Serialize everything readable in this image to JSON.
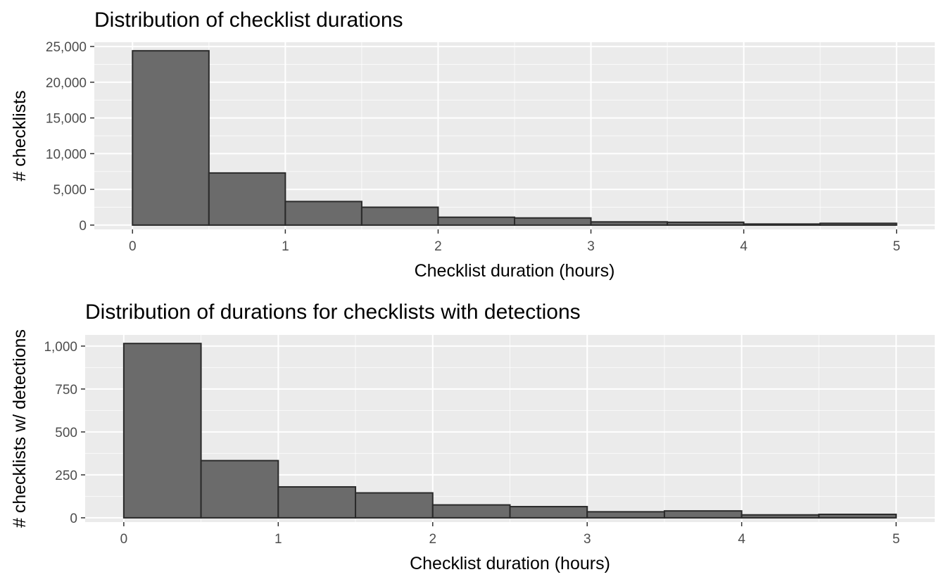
{
  "chart_data": [
    {
      "type": "bar",
      "title": "Distribution of checklist durations",
      "xlabel": "Checklist duration (hours)",
      "ylabel": "# checklists",
      "bin_width": 0.5,
      "bins_start": [
        0,
        0.5,
        1,
        1.5,
        2,
        2.5,
        3,
        3.5,
        4,
        4.5
      ],
      "values": [
        24400,
        7300,
        3300,
        2500,
        1100,
        1000,
        450,
        400,
        150,
        250
      ],
      "xlim": [
        -0.25,
        5.25
      ],
      "ylim": [
        -600,
        25600
      ],
      "x_ticks": [
        0,
        1,
        2,
        3,
        4,
        5
      ],
      "x_tick_labels": [
        "0",
        "1",
        "2",
        "3",
        "4",
        "5"
      ],
      "y_ticks": [
        0,
        5000,
        10000,
        15000,
        20000,
        25000
      ],
      "y_tick_labels": [
        "0",
        "5,000",
        "10,000",
        "15,000",
        "20,000",
        "25,000"
      ],
      "grid": true,
      "legend": "none"
    },
    {
      "type": "bar",
      "title": "Distribution of durations for checklists with detections",
      "xlabel": "Checklist duration (hours)",
      "ylabel": "# checklists w/ detections",
      "bin_width": 0.5,
      "bins_start": [
        0,
        0.5,
        1,
        1.5,
        2,
        2.5,
        3,
        3.5,
        4,
        4.5
      ],
      "values": [
        1015,
        333,
        180,
        145,
        75,
        65,
        35,
        40,
        17,
        20
      ],
      "xlim": [
        -0.25,
        5.25
      ],
      "ylim": [
        -25,
        1065
      ],
      "x_ticks": [
        0,
        1,
        2,
        3,
        4,
        5
      ],
      "x_tick_labels": [
        "0",
        "1",
        "2",
        "3",
        "4",
        "5"
      ],
      "y_ticks": [
        0,
        250,
        500,
        750,
        1000
      ],
      "y_tick_labels": [
        "0",
        "250",
        "500",
        "750",
        "1,000"
      ],
      "grid": true,
      "legend": "none"
    }
  ]
}
